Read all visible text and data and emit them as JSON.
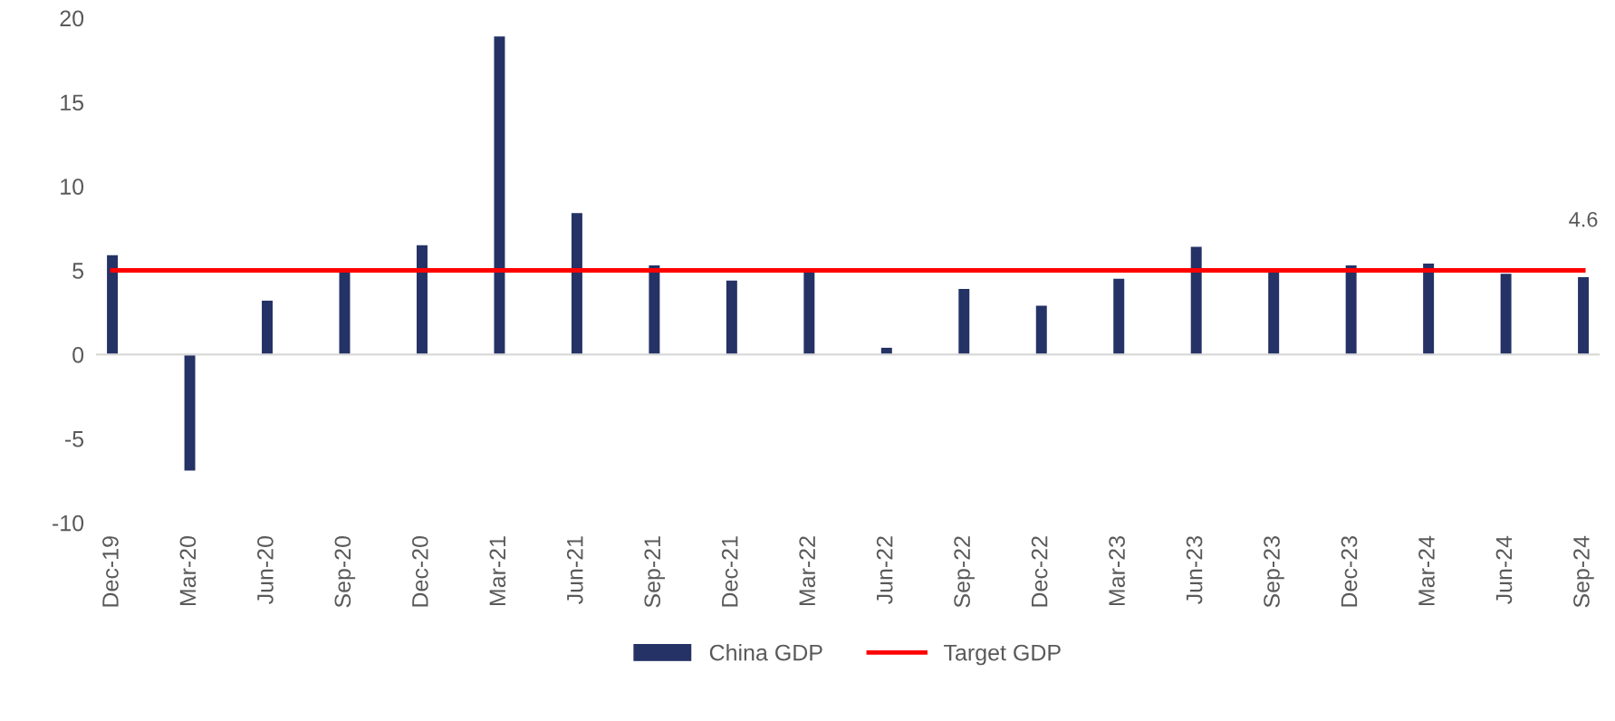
{
  "chart_data": {
    "type": "bar",
    "categories": [
      "Dec-19",
      "Mar-20",
      "Jun-20",
      "Sep-20",
      "Dec-20",
      "Mar-21",
      "Jun-21",
      "Sep-21",
      "Dec-21",
      "Mar-22",
      "Jun-22",
      "Sep-22",
      "Dec-22",
      "Mar-23",
      "Jun-23",
      "Sep-23",
      "Dec-23",
      "Mar-24",
      "Jun-24",
      "Sep-24"
    ],
    "series": [
      {
        "name": "China GDP",
        "color": "#243266",
        "values": [
          5.9,
          -6.9,
          3.2,
          4.9,
          6.5,
          18.9,
          8.4,
          5.3,
          4.4,
          4.9,
          0.4,
          3.9,
          2.9,
          4.5,
          6.4,
          5.0,
          5.3,
          5.4,
          4.8,
          4.6
        ]
      },
      {
        "name": "Target GDP",
        "type": "line",
        "color": "#ff0000",
        "values": [
          5,
          5,
          5,
          5,
          5,
          5,
          5,
          5,
          5,
          5,
          5,
          5,
          5,
          5,
          5,
          5,
          5,
          5,
          5,
          5
        ]
      }
    ],
    "annotations": [
      {
        "text": "4.6",
        "x": "Sep-24",
        "y": 4.6
      }
    ],
    "ylim": [
      -10,
      20
    ],
    "yticks": [
      -10,
      -5,
      0,
      5,
      10,
      15,
      20
    ],
    "legend": "bottom",
    "marker": "none",
    "line_style": "solid"
  }
}
